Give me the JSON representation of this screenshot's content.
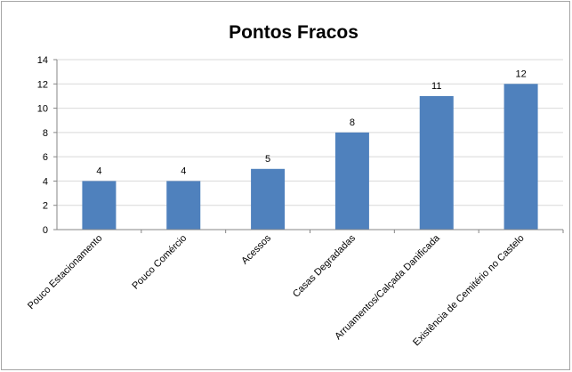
{
  "chart_data": {
    "type": "bar",
    "title": "Pontos Fracos",
    "categories": [
      "Pouco Estacionamento",
      "Pouco Comércio",
      "Acessos",
      "Casas Degradadas",
      "Arruamentos/Calçada Danificada",
      "Existência de Cemitério no Castelo"
    ],
    "values": [
      4,
      4,
      5,
      8,
      11,
      12
    ],
    "data_labels": [
      "4",
      "4",
      "5",
      "8",
      "11",
      "12"
    ],
    "ylim": [
      0,
      14
    ],
    "yticks": [
      "0",
      "2",
      "4",
      "6",
      "8",
      "10",
      "12",
      "14"
    ],
    "grid": true,
    "legend": "none",
    "bar_color": "#4f81bd"
  }
}
